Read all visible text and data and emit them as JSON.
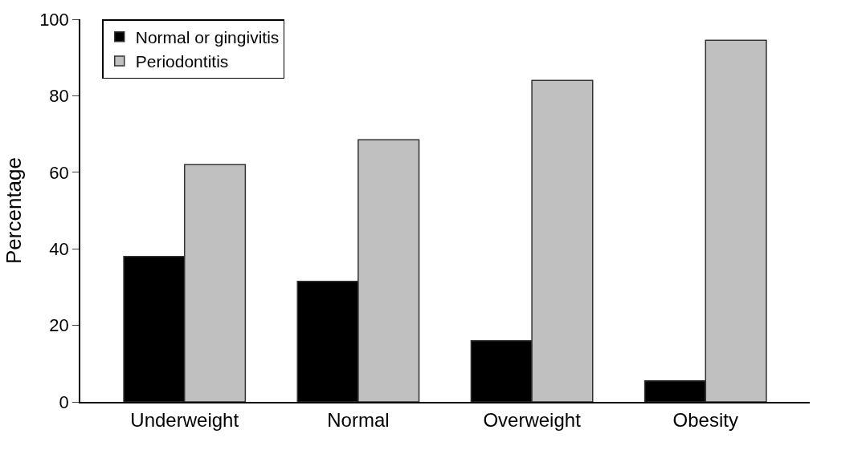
{
  "chart_data": {
    "type": "bar",
    "ylabel": "Percentage",
    "categories": [
      "Underweight",
      "Normal",
      "Overweight",
      "Obesity"
    ],
    "series": [
      {
        "name": "Normal or gingivitis",
        "color": "#000000",
        "values": [
          38,
          31.5,
          16,
          5.5
        ]
      },
      {
        "name": "Periodontitis",
        "color": "#c0c0c0",
        "values": [
          62,
          68.5,
          84,
          94.5
        ]
      }
    ],
    "ylim": [
      0,
      100
    ],
    "yticks": [
      0,
      20,
      40,
      60,
      80,
      100
    ],
    "legend": "top left"
  }
}
